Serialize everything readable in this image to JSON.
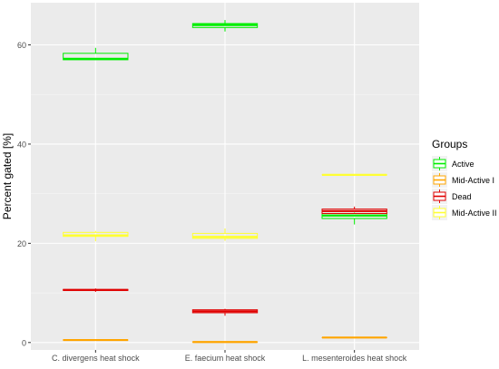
{
  "chart_data": {
    "type": "boxplot",
    "title": "",
    "xlabel": "",
    "ylabel": "Percent gated [%]",
    "ylim": [
      -1.5,
      68.5
    ],
    "yticks": [
      0,
      20,
      40,
      60
    ],
    "categories": [
      "C. divergens heat shock",
      "E. faecium heat shock",
      "L. mesenteroides heat shock"
    ],
    "legend": {
      "title": "Groups",
      "placement": "right",
      "items": [
        {
          "label": "Active",
          "color": "#00ee00"
        },
        {
          "label": "Mid-Active I",
          "color": "#ffa500"
        },
        {
          "label": "Dead",
          "color": "#e00000"
        },
        {
          "label": "Mid-Active II",
          "color": "#ffff33"
        }
      ]
    },
    "grid": true,
    "series": [
      {
        "name": "Active",
        "color": "#00ee00",
        "boxes": [
          {
            "min": 57.0,
            "q1": 57.0,
            "median": 57.2,
            "q3": 58.3,
            "max": 59.4
          },
          {
            "min": 62.7,
            "q1": 63.5,
            "median": 64.0,
            "q3": 64.3,
            "max": 65.0
          },
          {
            "min": 23.8,
            "q1": 25.0,
            "median": 25.6,
            "q3": 26.0,
            "max": 26.2
          }
        ]
      },
      {
        "name": "Mid-Active I",
        "color": "#ffa500",
        "boxes": [
          {
            "min": 0.5,
            "q1": 0.5,
            "median": 0.5,
            "q3": 0.5,
            "max": 0.5
          },
          {
            "min": 0.1,
            "q1": 0.1,
            "median": 0.1,
            "q3": 0.1,
            "max": 0.1
          },
          {
            "min": 1.0,
            "q1": 1.0,
            "median": 1.0,
            "q3": 1.0,
            "max": 1.0
          }
        ]
      },
      {
        "name": "Dead",
        "color": "#e00000",
        "boxes": [
          {
            "min": 10.2,
            "q1": 10.5,
            "median": 10.6,
            "q3": 10.7,
            "max": 10.9
          },
          {
            "min": 5.4,
            "q1": 6.0,
            "median": 6.3,
            "q3": 6.6,
            "max": 6.8
          },
          {
            "min": 26.0,
            "q1": 26.0,
            "median": 26.5,
            "q3": 26.9,
            "max": 27.4
          }
        ]
      },
      {
        "name": "Mid-Active II",
        "color": "#ffff33",
        "boxes": [
          {
            "min": 20.4,
            "q1": 21.4,
            "median": 21.6,
            "q3": 22.2,
            "max": 22.5
          },
          {
            "min": 20.5,
            "q1": 21.0,
            "median": 21.3,
            "q3": 22.0,
            "max": 23.0
          },
          {
            "min": 33.8,
            "q1": 33.8,
            "median": 33.8,
            "q3": 33.8,
            "max": 33.8
          }
        ]
      }
    ]
  }
}
